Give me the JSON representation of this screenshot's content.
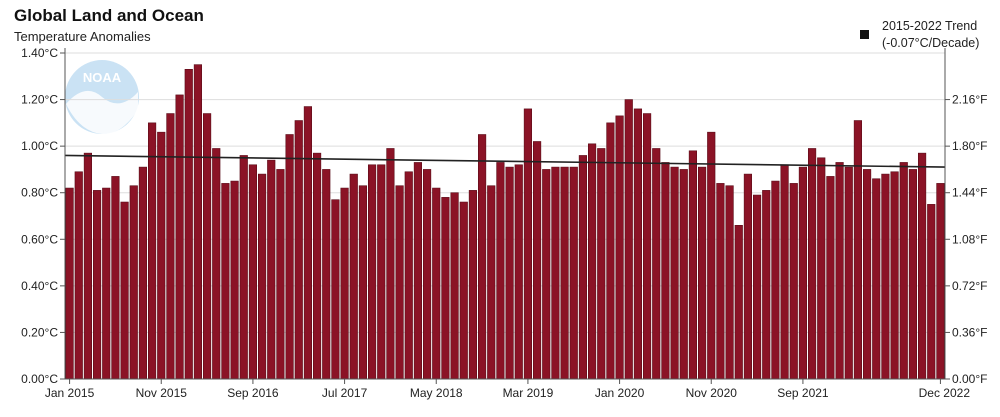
{
  "title": "Global Land and Ocean",
  "subtitle": "Temperature Anomalies",
  "logo_text": "NOAA",
  "legend": {
    "label_line1": "2015-2022 Trend",
    "label_line2": "(-0.07°C/Decade)"
  },
  "chart_data": {
    "type": "bar",
    "categories_note_first": "Jan 2015",
    "x_start": "Jan 2015",
    "x_end": "Dec 2022",
    "x_tick_labels": [
      "Jan 2015",
      "Nov 2015",
      "Sep 2016",
      "Jul 2017",
      "May 2018",
      "Mar 2019",
      "Jan 2020",
      "Nov 2020",
      "Sep 2021",
      "Dec 2022"
    ],
    "y_left_ticks": [
      "0.00°C",
      "0.20°C",
      "0.40°C",
      "0.60°C",
      "0.80°C",
      "1.00°C",
      "1.20°C",
      "1.40°C"
    ],
    "y_right_ticks": [
      "0.00°F",
      "0.36°F",
      "0.72°F",
      "1.08°F",
      "1.44°F",
      "1.80°F",
      "2.16°F"
    ],
    "ylim": [
      0,
      1.4
    ],
    "grid": true,
    "legend_position": "top-right",
    "bar_color": "#8b1326",
    "trend_color": "#222222",
    "series": [
      {
        "name": "Temperature Anomalies",
        "values": [
          0.82,
          0.89,
          0.97,
          0.81,
          0.82,
          0.87,
          0.76,
          0.83,
          0.91,
          1.1,
          1.06,
          1.14,
          1.22,
          1.33,
          1.35,
          1.14,
          0.99,
          0.84,
          0.85,
          0.96,
          0.92,
          0.88,
          0.94,
          0.9,
          1.05,
          1.11,
          1.17,
          0.97,
          0.9,
          0.77,
          0.82,
          0.88,
          0.83,
          0.92,
          0.92,
          0.99,
          0.83,
          0.89,
          0.93,
          0.9,
          0.82,
          0.78,
          0.8,
          0.76,
          0.81,
          1.05,
          0.83,
          0.93,
          0.91,
          0.92,
          1.16,
          1.02,
          0.9,
          0.91,
          0.91,
          0.91,
          0.96,
          1.01,
          0.99,
          1.1,
          1.13,
          1.2,
          1.16,
          1.14,
          0.99,
          0.93,
          0.91,
          0.9,
          0.98,
          0.91,
          1.06,
          0.84,
          0.83,
          0.66,
          0.88,
          0.79,
          0.81,
          0.85,
          0.92,
          0.84,
          0.91,
          0.99,
          0.95,
          0.87,
          0.93,
          0.91,
          1.11,
          0.9,
          0.86,
          0.88,
          0.89,
          0.93,
          0.9,
          0.97,
          0.75,
          0.84
        ]
      },
      {
        "name": "2015-2022 Trend",
        "type": "line",
        "start_value": 0.96,
        "end_value": 0.91
      }
    ]
  }
}
